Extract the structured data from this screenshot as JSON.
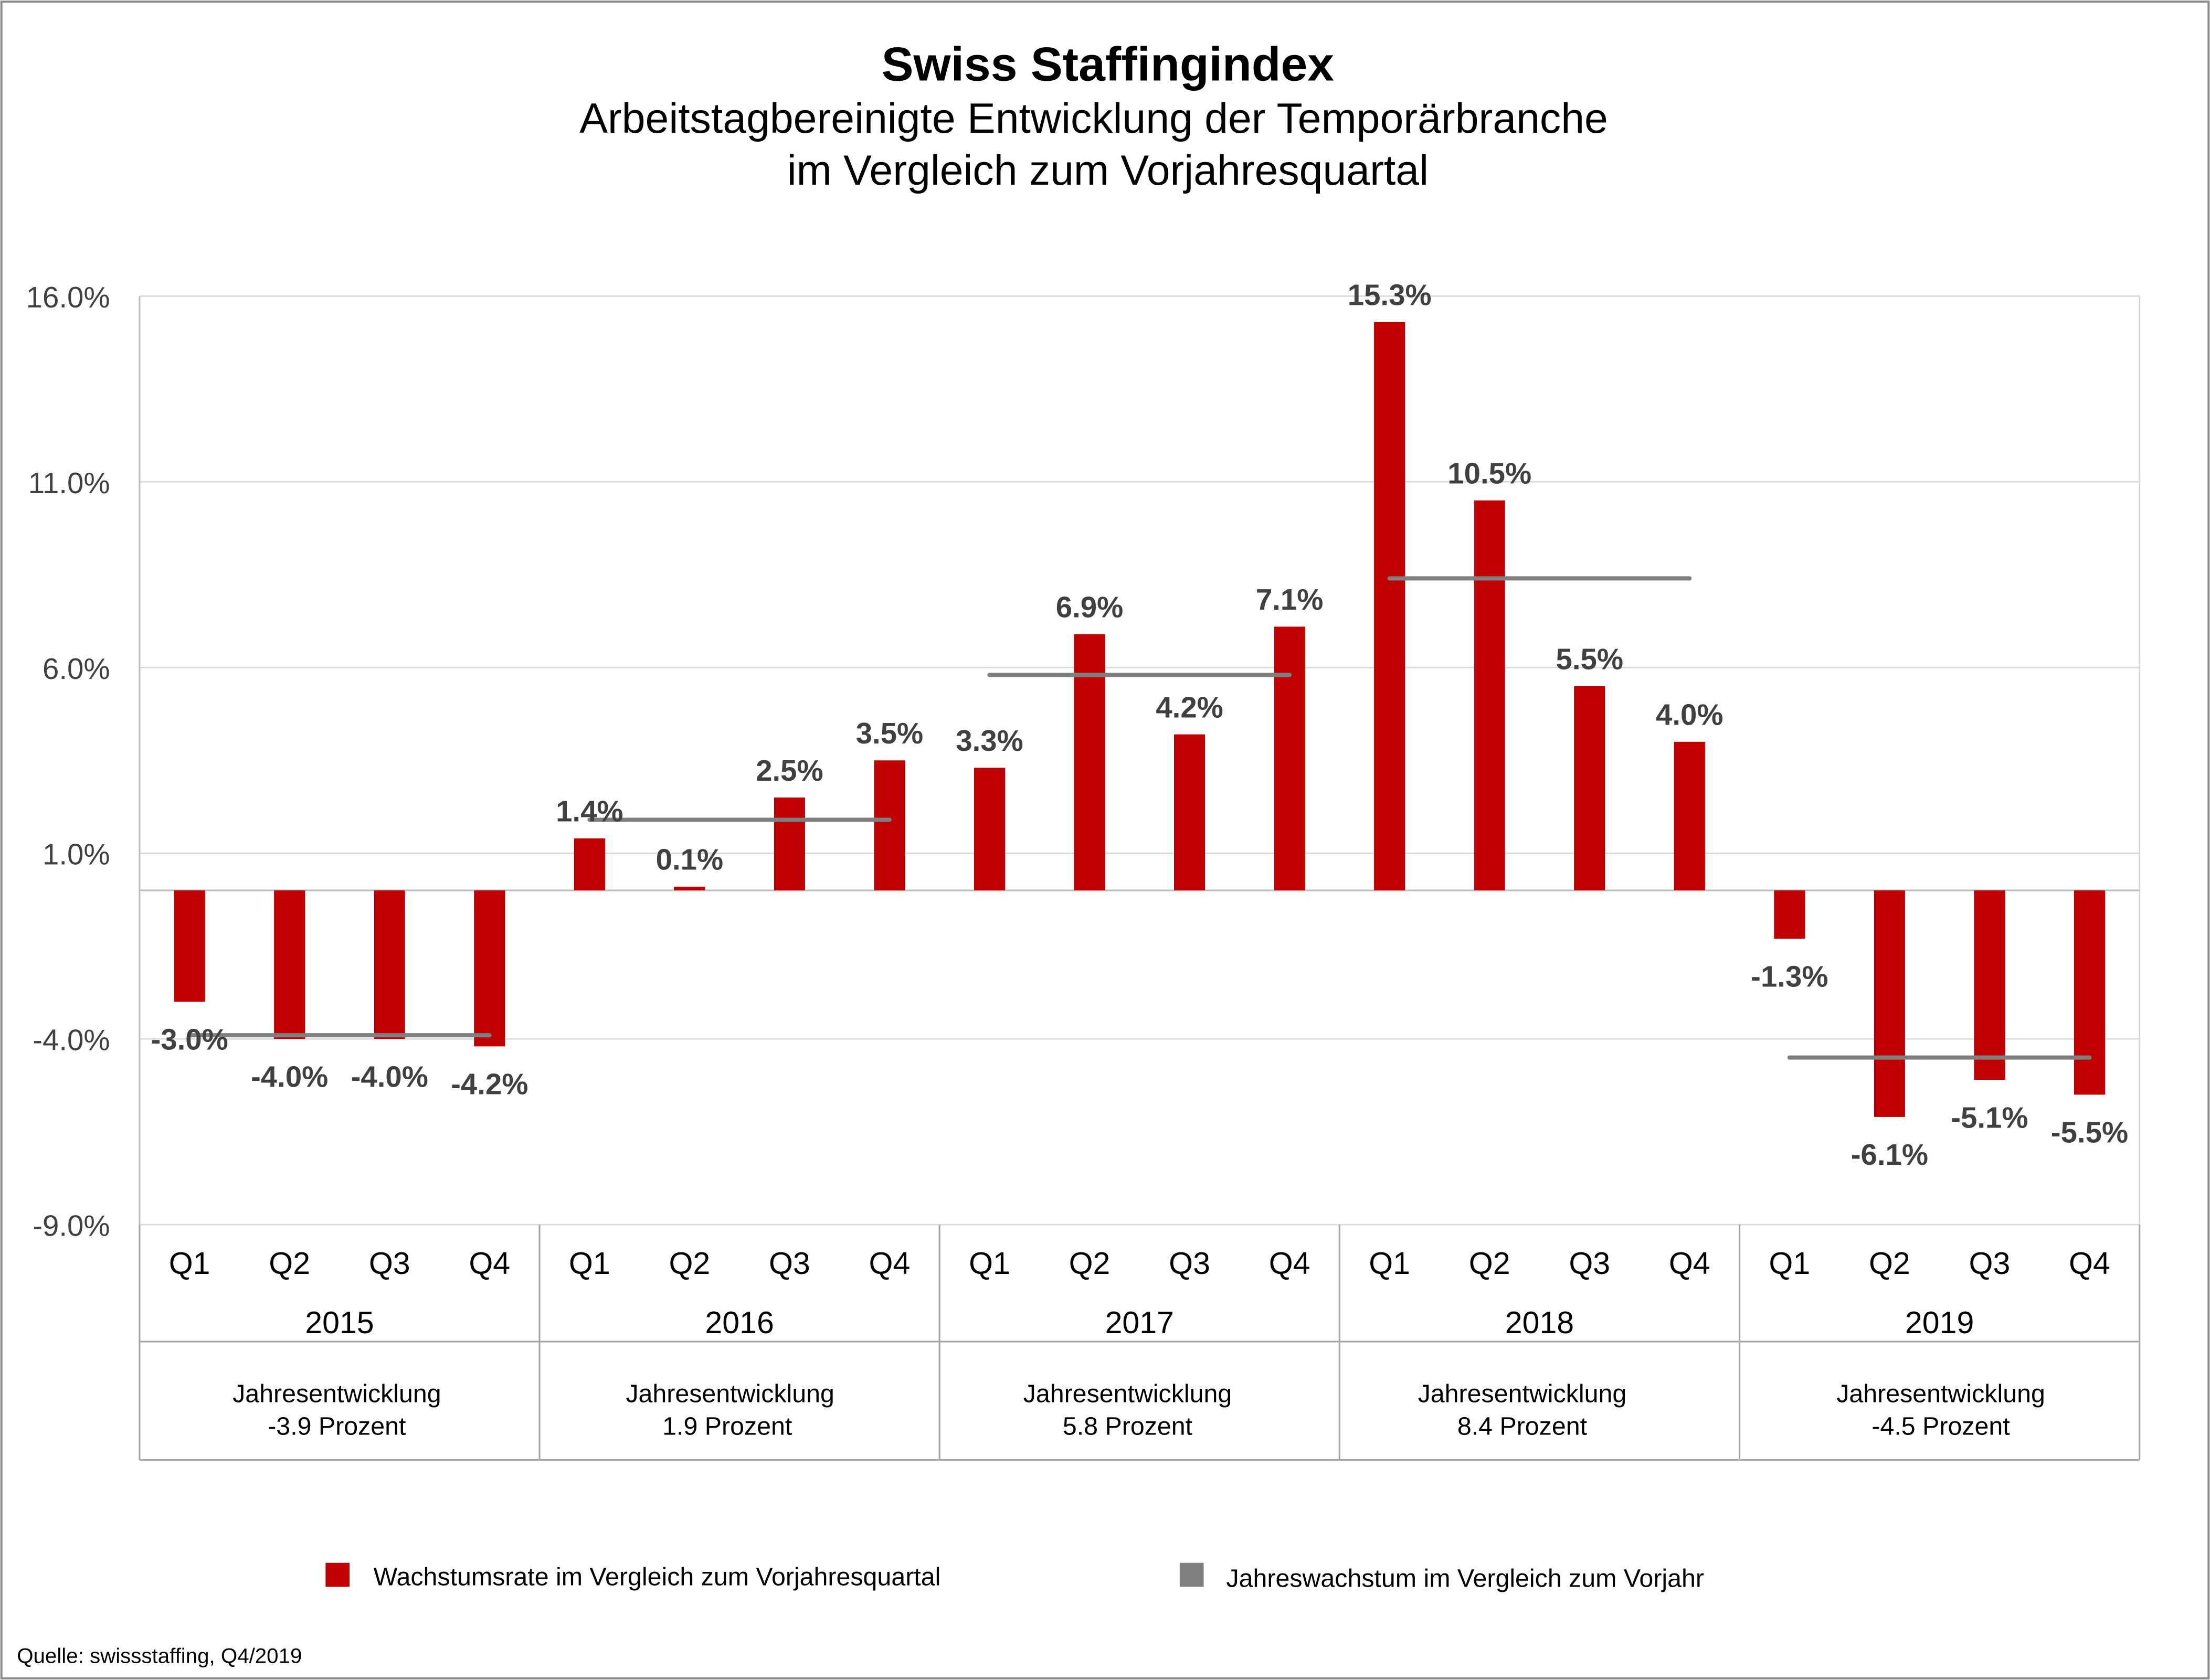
{
  "chart_data": {
    "type": "bar",
    "title": "Swiss Staffingindex",
    "subtitle": [
      "Arbeitstagbereinigte Entwicklung der Temporärbranche",
      "im Vergleich zum Vorjahresquartal"
    ],
    "ylim": [
      -9,
      16
    ],
    "yticks": [
      16,
      11,
      6,
      1,
      -4,
      -9
    ],
    "ytick_labels": [
      "16.0%",
      "11.0%",
      "6.0%",
      "1.0%",
      "-4.0%",
      "-9.0%"
    ],
    "grid": true,
    "years": [
      "2015",
      "2016",
      "2017",
      "2018",
      "2019"
    ],
    "quarters": [
      "Q1",
      "Q2",
      "Q3",
      "Q4"
    ],
    "series": [
      {
        "name": "Wachstumsrate im Vergleich zum Vorjahresquartal",
        "type": "bar",
        "color": "#c00000",
        "values": [
          -3.0,
          -4.0,
          -4.0,
          -4.2,
          1.4,
          0.1,
          2.5,
          3.5,
          3.3,
          6.9,
          4.2,
          7.1,
          15.3,
          10.5,
          5.5,
          4.0,
          -1.3,
          -6.1,
          -5.1,
          -5.5
        ],
        "labels": [
          "-3.0%",
          "-4.0%",
          "-4.0%",
          "-4.2%",
          "1.4%",
          "0.1%",
          "2.5%",
          "3.5%",
          "3.3%",
          "6.9%",
          "4.2%",
          "7.1%",
          "15.3%",
          "10.5%",
          "5.5%",
          "4.0%",
          "-1.3%",
          "-6.1%",
          "-5.1%",
          "-5.5%"
        ]
      },
      {
        "name": "Jahreswachstum im Vergleich zum Vorjahr",
        "type": "line",
        "color": "#7f7f7f",
        "values": [
          -3.9,
          1.9,
          5.8,
          8.4,
          -4.5
        ]
      }
    ],
    "annual_notes": [
      [
        "Jahresentwicklung",
        "-3.9 Prozent"
      ],
      [
        "Jahresentwicklung",
        "1.9 Prozent"
      ],
      [
        "Jahresentwicklung",
        "5.8 Prozent"
      ],
      [
        "Jahresentwicklung",
        "8.4 Prozent"
      ],
      [
        "Jahresentwicklung",
        "-4.5 Prozent"
      ]
    ],
    "legend_position": "bottom"
  },
  "source": "Quelle: swissstaffing, Q4/2019",
  "colors": {
    "bar": "#c00000",
    "annual_line": "#7f7f7f",
    "label": "#404040",
    "grid": "#d9d9d9"
  }
}
